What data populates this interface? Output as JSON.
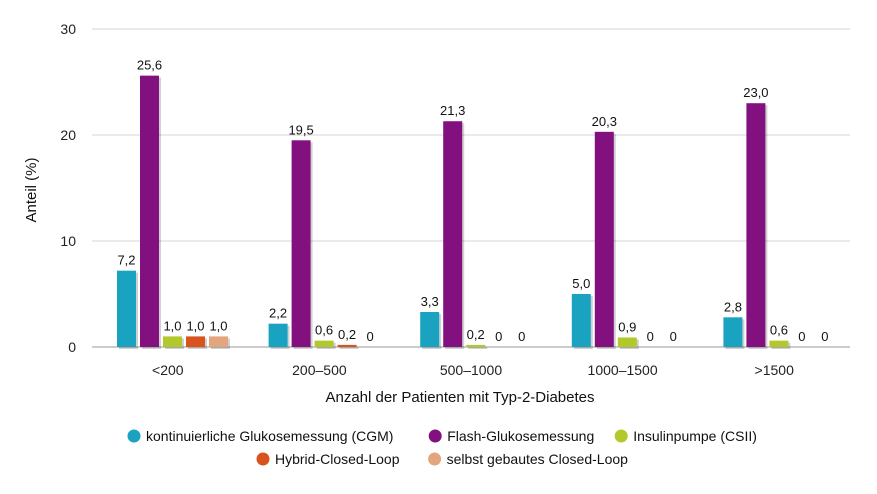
{
  "chart_data": {
    "type": "bar",
    "xlabel": "Anzahl der Patienten mit Typ-2-Diabetes",
    "ylabel": "Anteil (%)",
    "ylim": [
      0,
      30
    ],
    "yticks": [
      0,
      10,
      20,
      30
    ],
    "grid": true,
    "legend_position": "bottom",
    "categories": [
      "<200",
      "200–500",
      "500–1000",
      "1000–1500",
      ">1500"
    ],
    "series": [
      {
        "name": "kontinuierliche Glukosemessung (CGM)",
        "color": "#1aa3c0",
        "values": [
          7.2,
          2.2,
          3.3,
          5.0,
          2.8
        ],
        "labels": [
          "7,2",
          "2,2",
          "3,3",
          "5,0",
          "2,8"
        ]
      },
      {
        "name": "Flash-Glukosemessung",
        "color": "#82117f",
        "values": [
          25.6,
          19.5,
          21.3,
          20.3,
          23.0
        ],
        "labels": [
          "25,6",
          "19,5",
          "21,3",
          "20,3",
          "23,0"
        ]
      },
      {
        "name": "Insulinpumpe (CSII)",
        "color": "#b3c92b",
        "values": [
          1.0,
          0.6,
          0.2,
          0.9,
          0.6
        ],
        "labels": [
          "1,0",
          "0,6",
          "0,2",
          "0,9",
          "0,6"
        ]
      },
      {
        "name": "Hybrid-Closed-Loop",
        "color": "#d9531e",
        "values": [
          1.0,
          0.2,
          0,
          0,
          0
        ],
        "labels": [
          "1,0",
          "0,2",
          "0",
          "0",
          "0"
        ]
      },
      {
        "name": "selbst gebautes Closed-Loop",
        "color": "#e3a57d",
        "values": [
          1.0,
          0,
          0,
          0,
          0
        ],
        "labels": [
          "1,0",
          "0",
          "0",
          "0",
          "0"
        ]
      }
    ]
  }
}
